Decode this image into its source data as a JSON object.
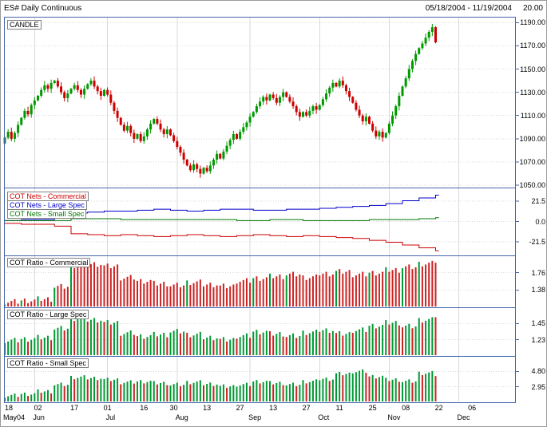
{
  "header": {
    "title": "ES# Daily Continuous",
    "date_range": "05/18/2004 - 11/19/2004",
    "right_value": "20.00"
  },
  "colors": {
    "grid": "#d9d9d9",
    "border": "#4466aa",
    "candle_up": "#009900",
    "candle_down": "#cc0000",
    "bar_up": "#009933",
    "bar_down": "#cc2222"
  },
  "x_axis": {
    "gridline_slots": [
      9,
      31,
      52,
      74,
      95,
      116,
      137
    ],
    "day_labels": [
      {
        "text": "18",
        "slot": 0
      },
      {
        "text": "02",
        "slot": 10
      },
      {
        "text": "17",
        "slot": 21
      },
      {
        "text": "01",
        "slot": 31
      },
      {
        "text": "16",
        "slot": 42
      },
      {
        "text": "30",
        "slot": 51
      },
      {
        "text": "13",
        "slot": 61
      },
      {
        "text": "27",
        "slot": 71
      },
      {
        "text": "13",
        "slot": 81
      },
      {
        "text": "27",
        "slot": 91
      },
      {
        "text": "11",
        "slot": 101
      },
      {
        "text": "25",
        "slot": 111
      },
      {
        "text": "08",
        "slot": 121
      },
      {
        "text": "22",
        "slot": 131
      },
      {
        "text": "06",
        "slot": 141
      }
    ],
    "month_labels": [
      {
        "text": "May04",
        "slot": 0
      },
      {
        "text": "Jun",
        "slot": 9
      },
      {
        "text": "Jul",
        "slot": 31
      },
      {
        "text": "Aug",
        "slot": 52
      },
      {
        "text": "Sep",
        "slot": 74
      },
      {
        "text": "Oct",
        "slot": 95
      },
      {
        "text": "Nov",
        "slot": 116
      },
      {
        "text": "Dec",
        "slot": 137
      }
    ]
  },
  "chart_data": [
    {
      "type": "candlestick",
      "panel": "candle",
      "label": "CANDLE",
      "first_open": 1086,
      "closes": [
        1091,
        1096,
        1090,
        1095,
        1102,
        1108,
        1114,
        1111,
        1119,
        1123,
        1127,
        1132,
        1136,
        1133,
        1138,
        1140,
        1135,
        1130,
        1125,
        1129,
        1133,
        1136,
        1132,
        1128,
        1133,
        1137,
        1140,
        1135,
        1131,
        1127,
        1132,
        1128,
        1121,
        1114,
        1108,
        1102,
        1097,
        1101,
        1095,
        1090,
        1094,
        1088,
        1092,
        1098,
        1103,
        1107,
        1103,
        1098,
        1094,
        1098,
        1093,
        1088,
        1083,
        1078,
        1072,
        1067,
        1063,
        1068,
        1064,
        1060,
        1065,
        1062,
        1067,
        1072,
        1077,
        1073,
        1079,
        1084,
        1089,
        1094,
        1090,
        1096,
        1100,
        1104,
        1109,
        1113,
        1118,
        1122,
        1126,
        1123,
        1128,
        1125,
        1121,
        1126,
        1130,
        1126,
        1122,
        1118,
        1113,
        1109,
        1113,
        1110,
        1114,
        1118,
        1115,
        1119,
        1124,
        1129,
        1134,
        1138,
        1135,
        1140,
        1136,
        1131,
        1126,
        1121,
        1115,
        1110,
        1105,
        1109,
        1103,
        1097,
        1092,
        1096,
        1091,
        1095,
        1103,
        1110,
        1118,
        1127,
        1135,
        1142,
        1150,
        1157,
        1163,
        1168,
        1172,
        1177,
        1182,
        1186,
        1173
      ],
      "y_ticks": [
        {
          "text": "1190.00",
          "value": 1190
        },
        {
          "text": "1170.00",
          "value": 1170
        },
        {
          "text": "1150.00",
          "value": 1150
        },
        {
          "text": "1130.00",
          "value": 1130
        },
        {
          "text": "1110.00",
          "value": 1110
        },
        {
          "text": "1090.00",
          "value": 1090
        },
        {
          "text": "1070.00",
          "value": 1070
        },
        {
          "text": "1050.00",
          "value": 1050
        }
      ],
      "y_range": [
        1048,
        1195
      ]
    },
    {
      "type": "step-line",
      "panel": "nets",
      "labels": [
        {
          "text": "COT Nets - Commercial",
          "color": "#cc0000"
        },
        {
          "text": "COT Nets - Large Spec",
          "color": "#0000cc"
        },
        {
          "text": "COT Nets - Small Spec",
          "color": "#007700"
        }
      ],
      "series": [
        {
          "name": "Commercial",
          "color": "#cc0000",
          "weekly": [
            -2,
            -3,
            -3,
            -5,
            -13,
            -14,
            -15,
            -14,
            -15,
            -16,
            -15,
            -14,
            -15,
            -16,
            -15,
            -14,
            -15,
            -16,
            -15,
            -16,
            -17,
            -18,
            -20,
            -22,
            -25,
            -28,
            -31
          ]
        },
        {
          "name": "Large Spec",
          "color": "#0000cc",
          "weekly": [
            1,
            2,
            2,
            4,
            9,
            10,
            11,
            11,
            12,
            13,
            12,
            11,
            12,
            13,
            13,
            12,
            12,
            13,
            13,
            14,
            15,
            16,
            17,
            19,
            22,
            25,
            28
          ]
        },
        {
          "name": "Small Spec",
          "color": "#007700",
          "weekly": [
            1,
            1,
            1,
            1,
            3,
            3,
            3,
            2,
            2,
            2,
            2,
            2,
            2,
            2,
            1,
            1,
            2,
            2,
            1,
            1,
            1,
            1,
            2,
            2,
            2,
            3,
            4
          ]
        }
      ],
      "y_ticks": [
        {
          "text": "21.5",
          "value": 21.5
        },
        {
          "text": "0.0",
          "value": 0
        },
        {
          "text": "-21.5",
          "value": -21.5
        }
      ],
      "y_range": [
        -36,
        36
      ]
    },
    {
      "type": "bar",
      "panel": "ratio_commercial",
      "label": "COT Ratio - Commercial",
      "weekly": [
        1.12,
        1.15,
        1.18,
        1.45,
        1.92,
        1.95,
        1.9,
        1.65,
        1.58,
        1.52,
        1.48,
        1.55,
        1.5,
        1.46,
        1.58,
        1.64,
        1.68,
        1.72,
        1.66,
        1.74,
        1.78,
        1.72,
        1.76,
        1.82,
        1.88,
        1.96,
        2.02
      ],
      "wiggle": 0.02,
      "up_threshold": 0.05,
      "y_ticks": [
        {
          "text": "1.76",
          "value": 1.76
        },
        {
          "text": "1.38",
          "value": 1.38
        }
      ],
      "y_range": [
        1.0,
        2.14
      ]
    },
    {
      "type": "bar",
      "panel": "ratio_large",
      "label": "COT Ratio - Large Spec",
      "weekly": [
        1.22,
        1.24,
        1.26,
        1.38,
        1.52,
        1.5,
        1.46,
        1.32,
        1.28,
        1.3,
        1.34,
        1.3,
        1.26,
        1.23,
        1.28,
        1.34,
        1.31,
        1.28,
        1.33,
        1.36,
        1.31,
        1.36,
        1.42,
        1.46,
        1.41,
        1.5,
        1.56
      ],
      "wiggle": 0.012,
      "up_threshold": 0.02,
      "y_ticks": [
        {
          "text": "1.45",
          "value": 1.45
        },
        {
          "text": "1.23",
          "value": 1.23
        }
      ],
      "y_range": [
        1.01,
        1.67
      ]
    },
    {
      "type": "bar",
      "panel": "ratio_small",
      "label": "COT Ratio - Small Spec",
      "weekly": [
        1.9,
        2.1,
        2.4,
        3.2,
        4.1,
        4.0,
        3.8,
        3.5,
        3.6,
        3.4,
        3.2,
        3.5,
        3.3,
        3.0,
        3.2,
        3.6,
        3.4,
        3.2,
        3.6,
        3.9,
        4.5,
        4.8,
        4.2,
        3.8,
        3.6,
        4.6,
        4.4
      ],
      "wiggle": 0.08,
      "up_threshold": -0.3,
      "y_ticks": [
        {
          "text": "4.80",
          "value": 4.8
        },
        {
          "text": "2.95",
          "value": 2.95
        }
      ],
      "y_range": [
        1.1,
        6.65
      ]
    }
  ]
}
